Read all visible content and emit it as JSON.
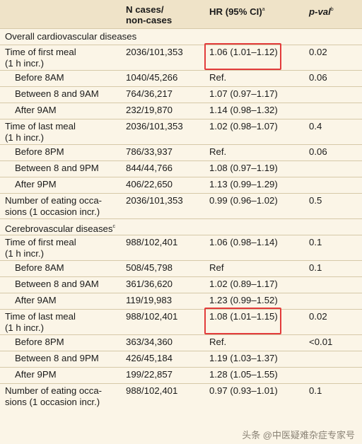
{
  "header": {
    "col_n_line1": "N cases/",
    "col_n_line2": "non-cases",
    "col_hr": "HR (95% CI)",
    "col_hr_sup": "a",
    "col_p": "p-val",
    "col_p_sup": "b"
  },
  "sections": [
    {
      "title": "Overall cardiovascular diseases",
      "title_sup": "",
      "rows": [
        {
          "label": [
            "Time of first meal",
            "(1 h incr.)"
          ],
          "n": "2036/101,353",
          "hr": "1.06 (1.01–1.12)",
          "p": "0.02",
          "highlight": true
        },
        {
          "label": [
            "Before 8AM"
          ],
          "n": "1040/45,266",
          "hr": "Ref.",
          "p": "0.06",
          "sub": true
        },
        {
          "label": [
            "Between 8 and 9AM"
          ],
          "n": "764/36,217",
          "hr": "1.07 (0.97–1.17)",
          "p": "",
          "sub": true
        },
        {
          "label": [
            "After 9AM"
          ],
          "n": "232/19,870",
          "hr": "1.14 (0.98–1.32)",
          "p": "",
          "sub": true
        },
        {
          "label": [
            "Time of last meal",
            "(1 h incr.)"
          ],
          "n": "2036/101,353",
          "hr": "1.02 (0.98–1.07)",
          "p": "0.4"
        },
        {
          "label": [
            "Before 8PM"
          ],
          "n": "786/33,937",
          "hr": "Ref.",
          "p": "0.06",
          "sub": true
        },
        {
          "label": [
            "Between 8 and 9PM"
          ],
          "n": "844/44,766",
          "hr": "1.08 (0.97–1.19)",
          "p": "",
          "sub": true
        },
        {
          "label": [
            "After 9PM"
          ],
          "n": "406/22,650",
          "hr": "1.13 (0.99–1.29)",
          "p": "",
          "sub": true
        },
        {
          "label": [
            "Number of eating occa-",
            "sions (1 occasion incr.)"
          ],
          "n": "2036/101,353",
          "hr": "0.99 (0.96–1.02)",
          "p": "0.5"
        }
      ]
    },
    {
      "title": "Cerebrovascular diseases",
      "title_sup": "c",
      "rows": [
        {
          "label": [
            "Time of first meal",
            "(1 h incr.)"
          ],
          "n": "988/102,401",
          "hr": "1.06 (0.98–1.14)",
          "p": "0.1"
        },
        {
          "label": [
            "Before 8AM"
          ],
          "n": "508/45,798",
          "hr": "Ref",
          "p": "0.1",
          "sub": true
        },
        {
          "label": [
            "Between 8 and 9AM"
          ],
          "n": "361/36,620",
          "hr": "1.02 (0.89–1.17)",
          "p": "",
          "sub": true
        },
        {
          "label": [
            "After 9AM"
          ],
          "n": "119/19,983",
          "hr": "1.23 (0.99–1.52)",
          "p": "",
          "sub": true
        },
        {
          "label": [
            "Time of last meal",
            "(1 h incr.)"
          ],
          "n": "988/102,401",
          "hr": "1.08 (1.01–1.15)",
          "p": "0.02",
          "highlight": true
        },
        {
          "label": [
            "Before 8PM"
          ],
          "n": "363/34,360",
          "hr": "Ref.",
          "p": "<0.01",
          "sub": true
        },
        {
          "label": [
            "Between 8 and 9PM"
          ],
          "n": "426/45,184",
          "hr": "1.19 (1.03–1.37)",
          "p": "",
          "sub": true
        },
        {
          "label": [
            "After 9PM"
          ],
          "n": "199/22,857",
          "hr": "1.28 (1.05–1.55)",
          "p": "",
          "sub": true
        },
        {
          "label": [
            "Number of eating occa-",
            "sions (1 occasion incr.)"
          ],
          "n": "988/102,401",
          "hr": "0.97 (0.93–1.01)",
          "p": "0.1"
        }
      ]
    }
  ],
  "watermark": "头条 @中医疑难杂症专家号",
  "colors": {
    "highlight_box": "#e23b3b",
    "header_bg": "#efe3c8",
    "page_bg": "#fbf5e7"
  }
}
